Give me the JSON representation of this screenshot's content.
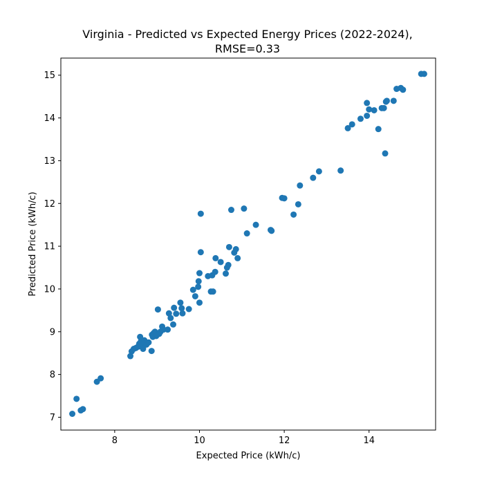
{
  "chart_data": {
    "type": "scatter",
    "title": [
      "Virginia - Predicted vs Expected Energy Prices (2022-2024),",
      "RMSE=0.33"
    ],
    "xlabel": "Expected Price (kWh/c)",
    "ylabel": "Predicted Price (kWh/c)",
    "xlim": [
      6.73,
      15.57
    ],
    "ylim": [
      6.7,
      15.4
    ],
    "xticks": [
      8,
      10,
      12,
      14
    ],
    "yticks": [
      7,
      8,
      9,
      10,
      11,
      12,
      13,
      14,
      15
    ],
    "grid": false,
    "marker_color": "#1f77b4",
    "points": [
      [
        7.0,
        7.08
      ],
      [
        7.1,
        7.43
      ],
      [
        7.2,
        7.16
      ],
      [
        7.25,
        7.19
      ],
      [
        7.58,
        7.83
      ],
      [
        7.67,
        7.91
      ],
      [
        8.37,
        8.43
      ],
      [
        8.4,
        8.54
      ],
      [
        8.45,
        8.6
      ],
      [
        8.5,
        8.62
      ],
      [
        8.55,
        8.65
      ],
      [
        8.58,
        8.72
      ],
      [
        8.6,
        8.88
      ],
      [
        8.62,
        8.78
      ],
      [
        8.65,
        8.68
      ],
      [
        8.67,
        8.6
      ],
      [
        8.7,
        8.8
      ],
      [
        8.72,
        8.73
      ],
      [
        8.75,
        8.7
      ],
      [
        8.8,
        8.75
      ],
      [
        8.87,
        8.55
      ],
      [
        8.88,
        8.93
      ],
      [
        8.9,
        8.88
      ],
      [
        8.92,
        8.97
      ],
      [
        8.95,
        9.0
      ],
      [
        8.98,
        8.9
      ],
      [
        9.0,
        8.93
      ],
      [
        9.02,
        9.52
      ],
      [
        9.05,
        8.95
      ],
      [
        9.08,
        9.0
      ],
      [
        9.12,
        9.12
      ],
      [
        9.15,
        9.05
      ],
      [
        9.25,
        9.05
      ],
      [
        9.28,
        9.43
      ],
      [
        9.32,
        9.32
      ],
      [
        9.38,
        9.17
      ],
      [
        9.4,
        9.56
      ],
      [
        9.45,
        9.42
      ],
      [
        9.55,
        9.68
      ],
      [
        9.58,
        9.55
      ],
      [
        9.6,
        9.43
      ],
      [
        9.75,
        9.53
      ],
      [
        9.85,
        9.98
      ],
      [
        9.9,
        9.83
      ],
      [
        9.97,
        10.05
      ],
      [
        9.98,
        10.18
      ],
      [
        10.0,
        10.37
      ],
      [
        10.0,
        9.68
      ],
      [
        10.03,
        10.86
      ],
      [
        10.03,
        11.76
      ],
      [
        10.2,
        10.3
      ],
      [
        10.27,
        9.94
      ],
      [
        10.3,
        10.32
      ],
      [
        10.32,
        9.94
      ],
      [
        10.37,
        10.4
      ],
      [
        10.38,
        10.72
      ],
      [
        10.5,
        10.63
      ],
      [
        10.62,
        10.36
      ],
      [
        10.65,
        10.5
      ],
      [
        10.68,
        10.56
      ],
      [
        10.7,
        10.98
      ],
      [
        10.75,
        11.85
      ],
      [
        10.82,
        10.85
      ],
      [
        10.86,
        10.93
      ],
      [
        10.9,
        10.72
      ],
      [
        11.05,
        11.88
      ],
      [
        11.12,
        11.3
      ],
      [
        11.33,
        11.5
      ],
      [
        11.68,
        11.38
      ],
      [
        11.7,
        11.36
      ],
      [
        11.95,
        12.13
      ],
      [
        12.0,
        12.12
      ],
      [
        12.22,
        11.74
      ],
      [
        12.33,
        11.98
      ],
      [
        12.37,
        12.42
      ],
      [
        12.68,
        12.6
      ],
      [
        12.82,
        12.75
      ],
      [
        13.33,
        12.77
      ],
      [
        13.5,
        13.76
      ],
      [
        13.6,
        13.85
      ],
      [
        13.8,
        13.98
      ],
      [
        13.95,
        14.35
      ],
      [
        13.95,
        14.05
      ],
      [
        14.0,
        14.2
      ],
      [
        14.12,
        14.18
      ],
      [
        14.22,
        13.74
      ],
      [
        14.3,
        14.23
      ],
      [
        14.35,
        14.23
      ],
      [
        14.38,
        13.17
      ],
      [
        14.4,
        14.38
      ],
      [
        14.42,
        14.4
      ],
      [
        14.58,
        14.4
      ],
      [
        14.65,
        14.68
      ],
      [
        14.75,
        14.7
      ],
      [
        14.8,
        14.66
      ],
      [
        15.23,
        15.03
      ],
      [
        15.3,
        15.03
      ]
    ]
  }
}
